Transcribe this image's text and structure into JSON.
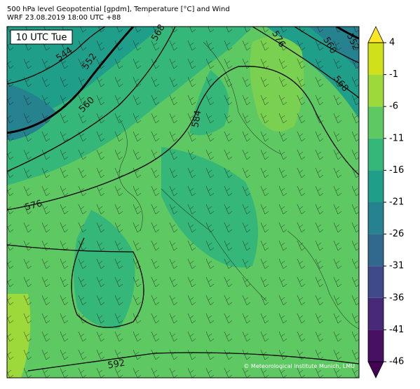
{
  "header": {
    "title": "500 hPa level Geopotential [gpdm], Temperature [°C] and Wind",
    "subtitle": "WRF 23.08.2019 18:00 UTC +88"
  },
  "time_label": "10 UTC Tue",
  "colorbar": {
    "range": [
      -46,
      4
    ],
    "ticks": [
      4,
      -1,
      -6,
      -11,
      -16,
      -21,
      -26,
      -31,
      -36,
      -41,
      -46
    ],
    "band_colors": [
      "#471063",
      "#482878",
      "#3e4a89",
      "#31688e",
      "#26828e",
      "#1f9e89",
      "#35b779",
      "#5ec962",
      "#9dd93b",
      "#d0e11c"
    ],
    "under_color": "#440154",
    "over_color": "#fde725"
  },
  "contour_labels": [
    544,
    552,
    568,
    576,
    560,
    552,
    568,
    560,
    584,
    576,
    592
  ],
  "credit": "© Meteorological Institute Munich, LMU"
}
